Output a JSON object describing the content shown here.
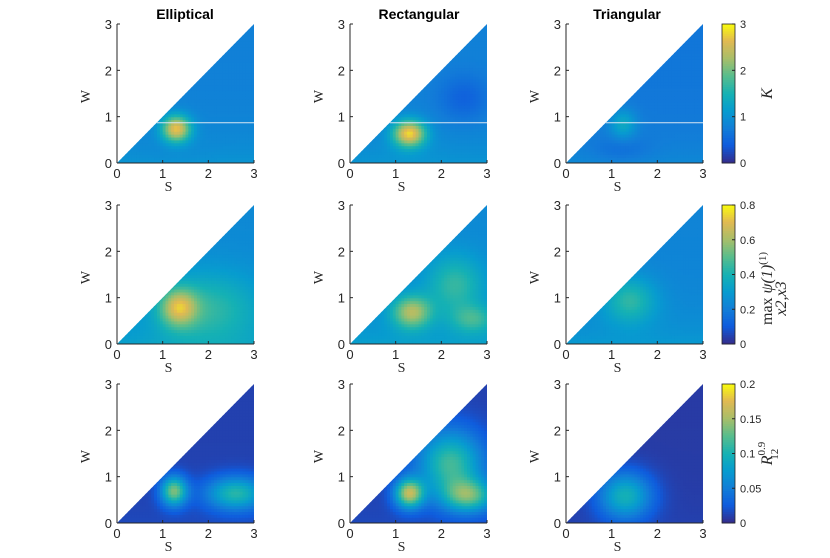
{
  "chart_data": {
    "type": "heatmap",
    "columns": [
      "Elliptical",
      "Rectangular",
      "Triangular"
    ],
    "xlabel": "S",
    "ylabel": "W",
    "xlim": [
      0,
      3
    ],
    "ylim": [
      0,
      3
    ],
    "xticks": [
      "0",
      "1",
      "2",
      "3"
    ],
    "yticks": [
      "0",
      "1",
      "2",
      "3"
    ],
    "domain": "triangle W <= S",
    "colormap": "parula",
    "horizontal_line_W": 0.87,
    "rows": [
      {
        "colorbar_label": "K",
        "clim": [
          0,
          3
        ],
        "colorbar_ticks": [
          "0",
          "1",
          "2",
          "3"
        ],
        "panels": [
          {
            "peaks": [
              {
                "S": 1.3,
                "W": 0.75,
                "value": 2.9,
                "sS": 0.22,
                "sW": 0.2
              },
              {
                "S": 1.15,
                "W": 0.25,
                "value": 1.0,
                "sS": 0.5,
                "sW": 0.2
              }
            ],
            "floor": 0.35
          },
          {
            "peaks": [
              {
                "S": 1.3,
                "W": 0.65,
                "value": 3.0,
                "sS": 0.25,
                "sW": 0.2
              },
              {
                "S": 1.2,
                "W": 0.25,
                "value": 1.1,
                "sS": 0.55,
                "sW": 0.2
              },
              {
                "S": 2.5,
                "W": 1.4,
                "value": 0.7,
                "sS": 0.4,
                "sW": 0.35
              }
            ],
            "floor": 0.35
          },
          {
            "peaks": [
              {
                "S": 1.25,
                "W": 0.85,
                "value": 1.5,
                "sS": 0.2,
                "sW": 0.22
              },
              {
                "S": 1.2,
                "W": 0.3,
                "value": 0.7,
                "sS": 0.45,
                "sW": 0.2
              }
            ],
            "floor": 0.3
          }
        ]
      },
      {
        "colorbar_label": "max ψ(1) x2,x3",
        "clim": [
          0,
          0.8
        ],
        "colorbar_ticks": [
          "0",
          "0.2",
          "0.4",
          "0.6",
          "0.8"
        ],
        "panels": [
          {
            "peaks": [
              {
                "S": 1.35,
                "W": 0.8,
                "value": 0.67,
                "sS": 0.28,
                "sW": 0.28
              },
              {
                "S": 2.0,
                "W": 0.8,
                "value": 0.5,
                "sS": 0.8,
                "sW": 0.55
              }
            ],
            "floor": 0.4
          },
          {
            "peaks": [
              {
                "S": 1.35,
                "W": 0.7,
                "value": 0.68,
                "sS": 0.3,
                "sW": 0.25
              },
              {
                "S": 2.3,
                "W": 1.3,
                "value": 0.52,
                "sS": 0.45,
                "sW": 0.45
              },
              {
                "S": 2.7,
                "W": 0.55,
                "value": 0.5,
                "sS": 0.35,
                "sW": 0.22
              }
            ],
            "floor": 0.4
          },
          {
            "peaks": [
              {
                "S": 1.4,
                "W": 0.95,
                "value": 0.5,
                "sS": 0.4,
                "sW": 0.35
              }
            ],
            "floor": 0.37
          }
        ]
      },
      {
        "colorbar_label": "R 0.9 12",
        "clim": [
          0,
          0.2
        ],
        "colorbar_ticks": [
          "0",
          "0.05",
          "0.1",
          "0.15",
          "0.2"
        ],
        "panels": [
          {
            "peaks": [
              {
                "S": 1.25,
                "W": 0.7,
                "value": 0.14,
                "sS": 0.2,
                "sW": 0.22
              },
              {
                "S": 2.6,
                "W": 0.65,
                "value": 0.11,
                "sS": 0.45,
                "sW": 0.25
              }
            ],
            "floor": 0.08
          },
          {
            "peaks": [
              {
                "S": 1.3,
                "W": 0.65,
                "value": 0.16,
                "sS": 0.22,
                "sW": 0.22
              },
              {
                "S": 2.2,
                "W": 1.3,
                "value": 0.12,
                "sS": 0.5,
                "sW": 0.5
              },
              {
                "S": 2.6,
                "W": 0.6,
                "value": 0.12,
                "sS": 0.4,
                "sW": 0.25
              }
            ],
            "floor": 0.08
          },
          {
            "peaks": [
              {
                "S": 1.3,
                "W": 0.6,
                "value": 0.1,
                "sS": 0.4,
                "sW": 0.35
              }
            ],
            "floor": 0.06
          }
        ]
      }
    ]
  }
}
